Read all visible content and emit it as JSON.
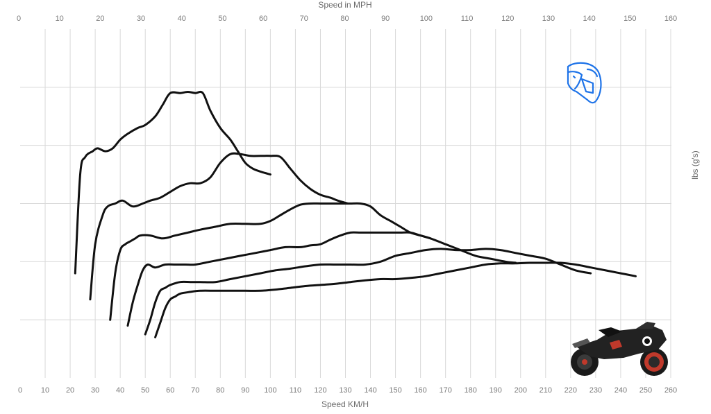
{
  "chart_data": {
    "type": "line",
    "title": "",
    "top_axis": {
      "label": "Speed in MPH",
      "ticks": [
        0,
        10,
        20,
        30,
        40,
        50,
        60,
        70,
        80,
        90,
        100,
        110,
        120,
        130,
        140,
        150,
        160
      ],
      "range": [
        0,
        160
      ]
    },
    "bottom_axis": {
      "label": "Speed KM/H",
      "ticks": [
        0,
        10,
        20,
        30,
        40,
        50,
        60,
        70,
        80,
        90,
        100,
        110,
        120,
        130,
        140,
        150,
        160,
        170,
        180,
        190,
        200,
        210,
        220,
        230,
        240,
        250,
        260
      ],
      "range": [
        0,
        260
      ]
    },
    "y_axis": {
      "label": "lbs (g's)",
      "side": "right",
      "tick_labels_shown": false,
      "range": [
        0,
        6
      ],
      "gridlines": [
        1,
        2,
        3,
        4,
        5
      ]
    },
    "grid": true,
    "series": [
      {
        "x": [
          22,
          24,
          26,
          29,
          31,
          34,
          37,
          40,
          43,
          47,
          50,
          54,
          57,
          60,
          64,
          67,
          70,
          73,
          76,
          80,
          84,
          87,
          90,
          93,
          96,
          100
        ],
        "y": [
          1.8,
          3.5,
          3.8,
          3.9,
          3.95,
          3.9,
          3.95,
          4.1,
          4.2,
          4.3,
          4.35,
          4.5,
          4.7,
          4.9,
          4.9,
          4.92,
          4.9,
          4.9,
          4.6,
          4.3,
          4.1,
          3.9,
          3.7,
          3.6,
          3.55,
          3.5
        ]
      },
      {
        "x": [
          28,
          30,
          33,
          35,
          38,
          41,
          45,
          49,
          52,
          56,
          60,
          64,
          68,
          72,
          76,
          80,
          84,
          88,
          92,
          96,
          100,
          104,
          108,
          112,
          116,
          120,
          124,
          127,
          131
        ],
        "y": [
          1.35,
          2.3,
          2.8,
          2.95,
          3.0,
          3.05,
          2.95,
          3.0,
          3.05,
          3.1,
          3.2,
          3.3,
          3.35,
          3.35,
          3.45,
          3.7,
          3.85,
          3.85,
          3.82,
          3.82,
          3.82,
          3.8,
          3.6,
          3.4,
          3.25,
          3.15,
          3.1,
          3.05,
          3.0
        ]
      },
      {
        "x": [
          36,
          38,
          40,
          42,
          44,
          46,
          48,
          52,
          57,
          62,
          67,
          72,
          78,
          84,
          90,
          96,
          100,
          104,
          108,
          112,
          116,
          120,
          124,
          128,
          132,
          136,
          140,
          144,
          148,
          152,
          156,
          160,
          164
        ],
        "y": [
          1.0,
          1.8,
          2.2,
          2.3,
          2.35,
          2.4,
          2.45,
          2.45,
          2.4,
          2.45,
          2.5,
          2.55,
          2.6,
          2.65,
          2.65,
          2.65,
          2.7,
          2.8,
          2.9,
          2.98,
          3.0,
          3.0,
          3.0,
          3.0,
          3.0,
          3.0,
          2.95,
          2.8,
          2.7,
          2.6,
          2.5,
          2.45,
          2.4
        ]
      },
      {
        "x": [
          43,
          45,
          47,
          49,
          51,
          54,
          58,
          62,
          66,
          70,
          76,
          82,
          88,
          94,
          100,
          106,
          112,
          116,
          120,
          124,
          128,
          132,
          136,
          140,
          144,
          148,
          152,
          156,
          160,
          164,
          170,
          176,
          182,
          188,
          194,
          198
        ],
        "y": [
          0.9,
          1.3,
          1.6,
          1.85,
          1.95,
          1.9,
          1.95,
          1.95,
          1.95,
          1.95,
          2.0,
          2.05,
          2.1,
          2.15,
          2.2,
          2.25,
          2.25,
          2.28,
          2.3,
          2.38,
          2.45,
          2.5,
          2.5,
          2.5,
          2.5,
          2.5,
          2.5,
          2.5,
          2.45,
          2.4,
          2.3,
          2.2,
          2.1,
          2.05,
          2.0,
          1.98
        ]
      },
      {
        "x": [
          50,
          52,
          54,
          56,
          58,
          60,
          64,
          68,
          72,
          78,
          84,
          90,
          96,
          102,
          108,
          114,
          120,
          126,
          132,
          138,
          144,
          150,
          156,
          162,
          168,
          174,
          180,
          186,
          192,
          198,
          204,
          210,
          216,
          222,
          228
        ],
        "y": [
          0.75,
          1.0,
          1.3,
          1.5,
          1.55,
          1.6,
          1.65,
          1.65,
          1.65,
          1.65,
          1.7,
          1.75,
          1.8,
          1.85,
          1.88,
          1.92,
          1.95,
          1.95,
          1.95,
          1.95,
          2.0,
          2.1,
          2.15,
          2.2,
          2.22,
          2.2,
          2.2,
          2.22,
          2.2,
          2.15,
          2.1,
          2.05,
          1.95,
          1.85,
          1.8
        ]
      },
      {
        "x": [
          54,
          56,
          58,
          60,
          62,
          64,
          68,
          72,
          78,
          84,
          90,
          96,
          102,
          108,
          114,
          120,
          126,
          132,
          138,
          144,
          150,
          156,
          162,
          168,
          174,
          180,
          186,
          192,
          198,
          204,
          210,
          216,
          222,
          228,
          234,
          240,
          246
        ],
        "y": [
          0.7,
          0.95,
          1.2,
          1.35,
          1.4,
          1.45,
          1.48,
          1.5,
          1.5,
          1.5,
          1.5,
          1.5,
          1.52,
          1.55,
          1.58,
          1.6,
          1.62,
          1.65,
          1.68,
          1.7,
          1.7,
          1.72,
          1.75,
          1.8,
          1.85,
          1.9,
          1.95,
          1.97,
          1.97,
          1.98,
          1.98,
          1.98,
          1.95,
          1.9,
          1.85,
          1.8,
          1.75
        ]
      }
    ]
  },
  "icons": {
    "helmet": "helmet-icon",
    "helmet_color": "#1e73e8",
    "motorcycle": "motorcycle-icon"
  }
}
